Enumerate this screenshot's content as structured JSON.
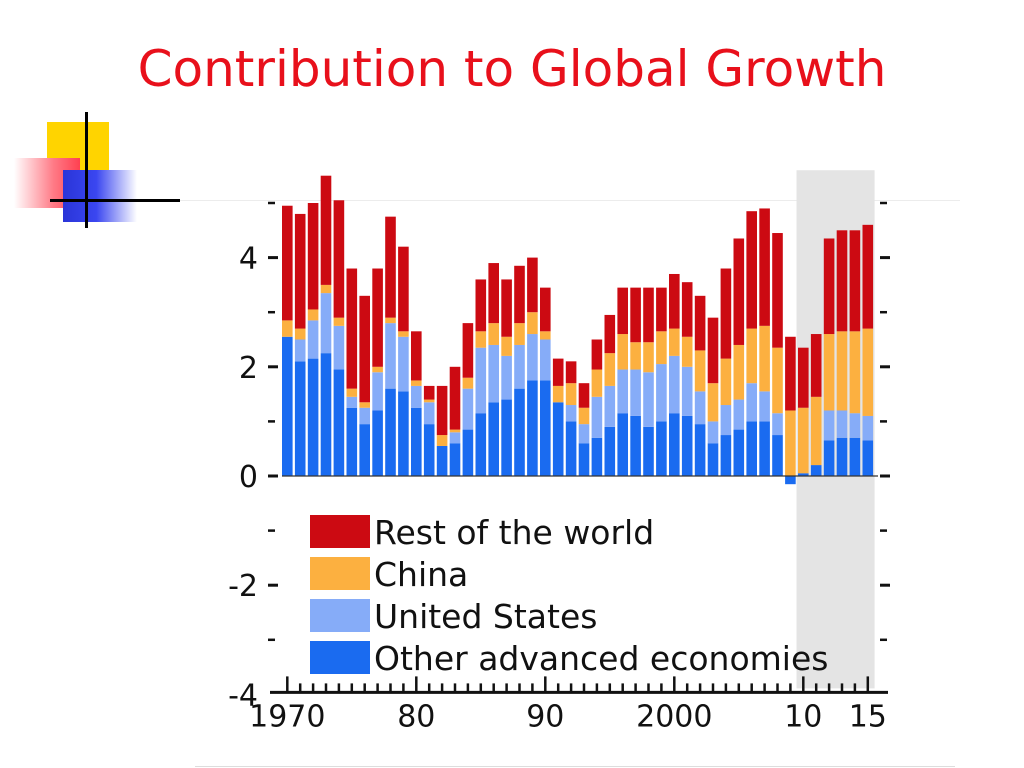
{
  "slide": {
    "title": "Contribution to Global Growth"
  },
  "chart_data": {
    "type": "bar",
    "stacked": true,
    "years": [
      1970,
      1971,
      1972,
      1973,
      1974,
      1975,
      1976,
      1977,
      1978,
      1979,
      1980,
      1981,
      1982,
      1983,
      1984,
      1985,
      1986,
      1987,
      1988,
      1989,
      1990,
      1991,
      1992,
      1993,
      1994,
      1995,
      1996,
      1997,
      1998,
      1999,
      2000,
      2001,
      2002,
      2003,
      2004,
      2005,
      2006,
      2007,
      2008,
      2009,
      2010,
      2011,
      2012,
      2013,
      2014,
      2015
    ],
    "series": [
      {
        "name": "Other advanced economies",
        "color": "#1a6bf0",
        "values": [
          2.55,
          2.1,
          2.15,
          2.25,
          1.95,
          1.25,
          0.95,
          1.2,
          1.6,
          1.55,
          1.25,
          0.95,
          0.55,
          0.6,
          0.85,
          1.15,
          1.35,
          1.4,
          1.6,
          1.75,
          1.75,
          1.35,
          1.0,
          0.6,
          0.7,
          0.9,
          1.15,
          1.1,
          0.9,
          1.0,
          1.15,
          1.1,
          0.95,
          0.6,
          0.75,
          0.85,
          1.0,
          1.0,
          0.75,
          -0.15,
          0.05,
          0.2,
          0.65,
          0.7,
          0.7,
          0.65
        ]
      },
      {
        "name": "United States",
        "color": "#86acf8",
        "values": [
          0.0,
          0.4,
          0.7,
          1.1,
          0.8,
          0.2,
          0.3,
          0.7,
          1.2,
          1.0,
          0.4,
          0.4,
          0.0,
          0.2,
          0.75,
          1.2,
          1.05,
          0.8,
          0.8,
          0.85,
          0.75,
          0.0,
          0.3,
          0.35,
          0.75,
          0.75,
          0.8,
          0.85,
          1.0,
          1.05,
          1.05,
          0.9,
          0.6,
          0.4,
          0.55,
          0.55,
          0.7,
          0.55,
          0.4,
          0.0,
          0.0,
          0.0,
          0.55,
          0.5,
          0.45,
          0.45
        ]
      },
      {
        "name": "China",
        "color": "#fcb040",
        "values": [
          0.3,
          0.2,
          0.2,
          0.15,
          0.15,
          0.15,
          0.1,
          0.1,
          0.1,
          0.1,
          0.1,
          0.05,
          0.2,
          0.05,
          0.2,
          0.3,
          0.4,
          0.35,
          0.4,
          0.4,
          0.15,
          0.3,
          0.4,
          0.3,
          0.5,
          0.6,
          0.65,
          0.5,
          0.55,
          0.6,
          0.5,
          0.55,
          0.75,
          0.7,
          0.85,
          1.0,
          1.0,
          1.2,
          1.2,
          1.2,
          1.2,
          1.25,
          1.4,
          1.45,
          1.5,
          1.6
        ]
      },
      {
        "name": "Rest of the world",
        "color": "#cc0a12",
        "values": [
          2.1,
          2.1,
          1.95,
          2.0,
          2.15,
          2.2,
          1.95,
          1.8,
          1.85,
          1.55,
          0.9,
          0.25,
          0.9,
          1.15,
          1.0,
          0.95,
          1.1,
          1.05,
          1.05,
          1.0,
          0.8,
          0.5,
          0.4,
          0.45,
          0.55,
          0.7,
          0.85,
          1.0,
          1.0,
          0.8,
          1.0,
          1.0,
          1.0,
          1.2,
          1.65,
          1.95,
          2.15,
          2.15,
          2.1,
          1.35,
          1.1,
          1.15,
          1.75,
          1.85,
          1.85,
          1.9
        ]
      }
    ],
    "ylim": [
      -4,
      5.6
    ],
    "yticks": [
      {
        "value": 4,
        "label": "4"
      },
      {
        "value": 2,
        "label": "2"
      },
      {
        "value": 0,
        "label": "0"
      },
      {
        "value": -2,
        "label": "-2"
      },
      {
        "value": -4,
        "label": "-4"
      }
    ],
    "minor_yticks": [
      5,
      3,
      1,
      -1,
      -3
    ],
    "xticks": [
      {
        "year": 1970,
        "label": "1970"
      },
      {
        "year": 1980,
        "label": "80"
      },
      {
        "year": 1990,
        "label": "90"
      },
      {
        "year": 2000,
        "label": "2000"
      },
      {
        "year": 2010,
        "label": "10"
      },
      {
        "year": 2015,
        "label": "15"
      }
    ],
    "shaded_years": [
      2010,
      2015
    ],
    "shade_color": "#e4e4e4",
    "legend": {
      "placement": "bottom-left",
      "entries": [
        "Rest of the world",
        "China",
        "United States",
        "Other advanced economies"
      ]
    }
  }
}
